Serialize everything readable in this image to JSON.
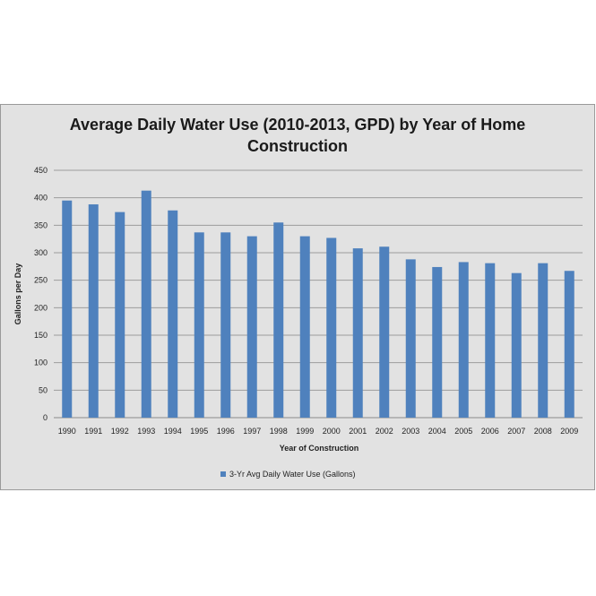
{
  "chart_data": {
    "type": "bar",
    "title_lines": [
      "Average Daily Water Use (2010-2013, GPD) by Year of Home",
      "Construction"
    ],
    "xlabel": "Year of Construction",
    "ylabel": "Gallons per Day",
    "categories": [
      "1990",
      "1991",
      "1992",
      "1993",
      "1994",
      "1995",
      "1996",
      "1997",
      "1998",
      "1999",
      "2000",
      "2001",
      "2002",
      "2003",
      "2004",
      "2005",
      "2006",
      "2007",
      "2008",
      "2009"
    ],
    "series": [
      {
        "name": "3-Yr Avg Daily Water Use (Gallons)",
        "values": [
          395,
          388,
          374,
          413,
          377,
          337,
          337,
          330,
          355,
          330,
          327,
          308,
          311,
          288,
          274,
          283,
          281,
          263,
          281,
          267
        ],
        "color": "#4f81bd"
      }
    ],
    "ylim": [
      0,
      450
    ],
    "yticks": [
      0,
      50,
      100,
      150,
      200,
      250,
      300,
      350,
      400,
      450
    ],
    "grid": true,
    "legend_position": "bottom"
  }
}
